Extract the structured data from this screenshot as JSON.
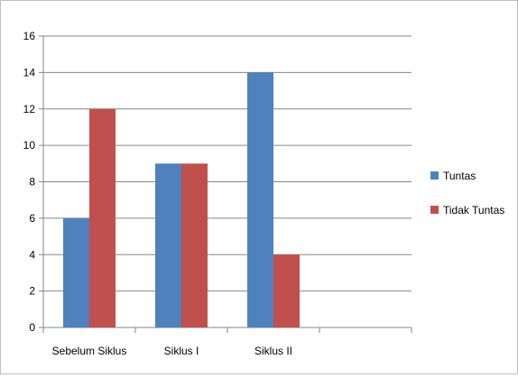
{
  "chart_data": {
    "type": "bar",
    "categories": [
      "Sebelum Siklus",
      "Siklus I",
      "Siklus II",
      ""
    ],
    "series": [
      {
        "name": "Tuntas",
        "values": [
          6,
          9,
          14,
          null
        ],
        "color": "#4f81bd"
      },
      {
        "name": "Tidak Tuntas",
        "values": [
          12,
          9,
          4,
          null
        ],
        "color": "#c0504d"
      }
    ],
    "title": "",
    "xlabel": "",
    "ylabel": "",
    "ylim": [
      0,
      16
    ],
    "yticks": [
      "0",
      "2",
      "4",
      "6",
      "8",
      "10",
      "12",
      "14",
      "16"
    ],
    "grid": true,
    "legend_position": "right",
    "gridline_color": "#868686",
    "axis_color": "#868686"
  }
}
